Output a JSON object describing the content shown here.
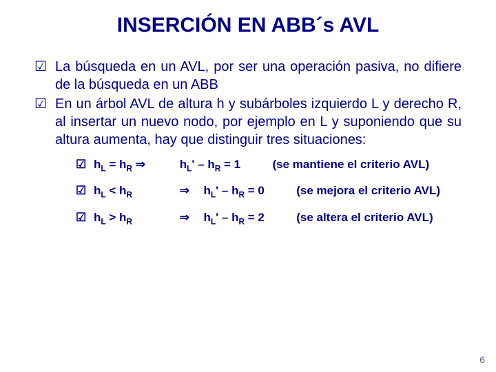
{
  "title": "INSERCIÓN EN ABB´s AVL",
  "bullet1": "La búsqueda en un AVL, por ser una operación pasiva, no difiere de la búsqueda en un ABB",
  "bullet2": "En un árbol AVL de altura h y subárboles izquierdo L y derecho R, al insertar un nuevo nodo, por ejemplo en L y suponiendo que su altura aumenta, hay que distinguir tres situaciones:",
  "sub1": {
    "lhs_pre": "h",
    "lhs_sub1": "L",
    "lhs_op": " = h",
    "lhs_sub2": "R",
    "arrow_inline": " ⇒",
    "mid_pre": "h",
    "mid_sub1": "L",
    "mid_rest": "' – h",
    "mid_sub2": "R",
    "mid_eq": " = 1",
    "tail": "(se mantiene el criterio AVL)"
  },
  "sub2": {
    "lhs_pre": "h",
    "lhs_sub1": "L",
    "lhs_op": " < h",
    "lhs_sub2": "R",
    "arrow": "⇒",
    "mid_pre": "h",
    "mid_sub1": "L",
    "mid_rest": "' – h",
    "mid_sub2": "R",
    "mid_eq": " = 0",
    "tail": "(se mejora el criterio AVL)"
  },
  "sub3": {
    "lhs_pre": "h",
    "lhs_sub1": "L",
    "lhs_op": " > h",
    "lhs_sub2": "R",
    "arrow": "⇒",
    "mid_pre": "h",
    "mid_sub1": "L",
    "mid_rest": "' – h",
    "mid_sub2": "R",
    "mid_eq": " = 2",
    "tail": "(se altera el criterio AVL)"
  },
  "checkmark": "☑",
  "page": "6"
}
